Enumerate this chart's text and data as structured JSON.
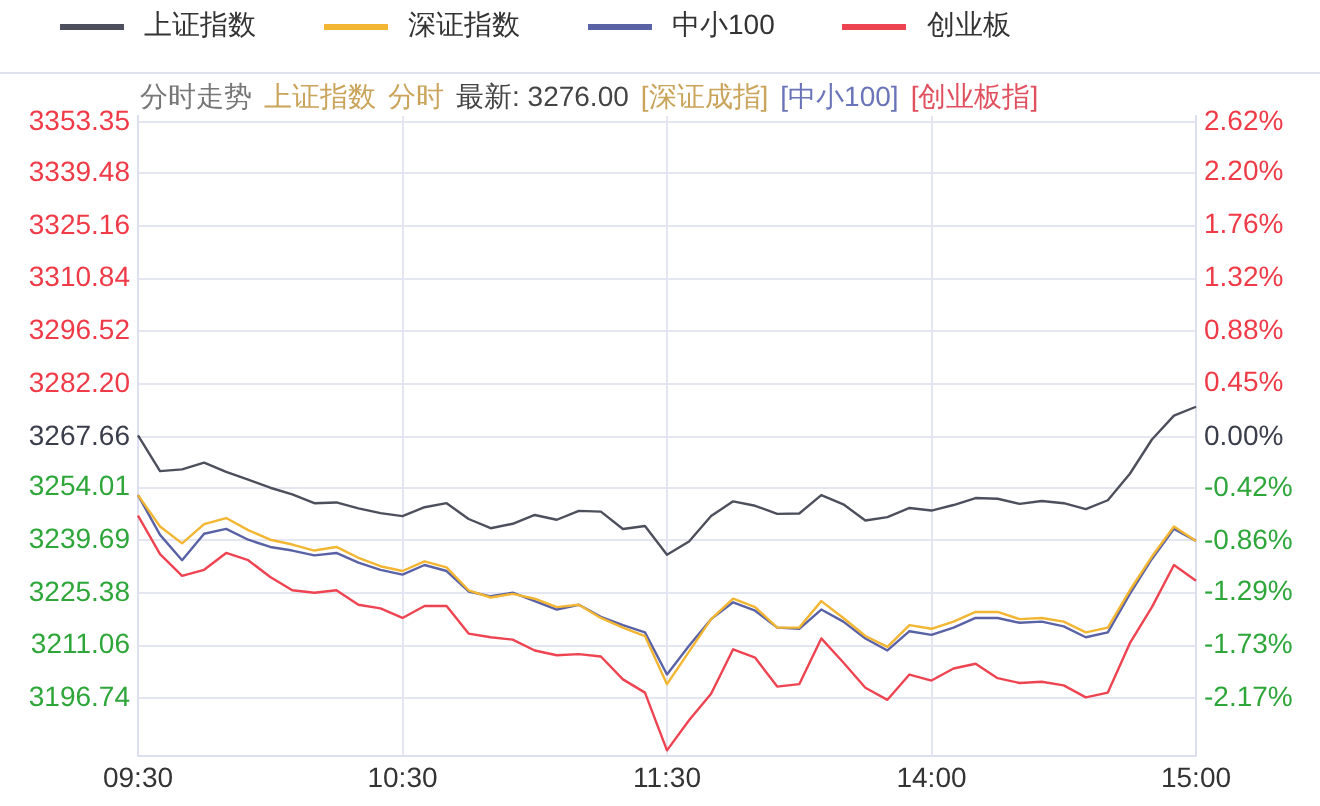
{
  "chart_data": {
    "type": "line",
    "annotations": [
      "分时走势",
      "上证指数",
      "分时",
      "最新: 3276.00",
      "[深证成指]",
      "[中小100]",
      "[创业板指]"
    ],
    "categories": [
      "09:30",
      null,
      null,
      null,
      null,
      null,
      null,
      null,
      null,
      null,
      null,
      null,
      "10:30",
      null,
      null,
      null,
      null,
      null,
      null,
      null,
      null,
      null,
      null,
      null,
      "11:30",
      null,
      null,
      null,
      null,
      null,
      null,
      null,
      null,
      null,
      null,
      null,
      "14:00",
      null,
      null,
      null,
      null,
      null,
      null,
      null,
      null,
      null,
      null,
      null,
      "15:00"
    ],
    "ylim": [
      3181,
      3355
    ],
    "yticks": [
      {
        "value": 3353.35,
        "label": "3353.35"
      },
      {
        "value": 3339.48,
        "label": "3339.48"
      },
      {
        "value": 3325.16,
        "label": "3325.16"
      },
      {
        "value": 3310.84,
        "label": "3310.84"
      },
      {
        "value": 3296.52,
        "label": "3296.52"
      },
      {
        "value": 3282.2,
        "label": "3282.20"
      },
      {
        "value": 3267.66,
        "label": "3267.66"
      },
      {
        "value": 3254.01,
        "label": "3254.01"
      },
      {
        "value": 3239.69,
        "label": "3239.69"
      },
      {
        "value": 3225.38,
        "label": "3225.38"
      },
      {
        "value": 3211.06,
        "label": "3211.06"
      },
      {
        "value": 3196.74,
        "label": "3196.74"
      }
    ],
    "y2lim": [
      -2.65,
      2.67
    ],
    "y2ticks": [
      {
        "value": 2.62,
        "label": "2.62%"
      },
      {
        "value": 2.2,
        "label": "2.20%"
      },
      {
        "value": 1.76,
        "label": "1.76%"
      },
      {
        "value": 1.32,
        "label": "1.32%"
      },
      {
        "value": 0.88,
        "label": "0.88%"
      },
      {
        "value": 0.45,
        "label": "0.45%"
      },
      {
        "value": 0,
        "label": "0.00%"
      },
      {
        "value": -0.42,
        "label": "-0.42%"
      },
      {
        "value": -0.86,
        "label": "-0.86%"
      },
      {
        "value": -1.29,
        "label": "-1.29%"
      },
      {
        "value": -1.73,
        "label": "-1.73%"
      },
      {
        "value": -2.17,
        "label": "-2.17%"
      }
    ],
    "grid": true,
    "legend": "top",
    "marker": "none",
    "line_style": "solid",
    "series": [
      {
        "name": "上证指数",
        "color": "#4d4f5c",
        "values": [
          3268.2,
          3258.5,
          3259.0,
          3260.8,
          3258.3,
          3256.2,
          3254.0,
          3252.2,
          3249.8,
          3250.0,
          3248.4,
          3247.1,
          3246.3,
          3248.7,
          3249.8,
          3245.5,
          3243.0,
          3244.2,
          3246.6,
          3245.3,
          3247.7,
          3247.5,
          3242.8,
          3243.6,
          3235.8,
          3239.4,
          3246.3,
          3250.3,
          3249.1,
          3246.9,
          3247.0,
          3252.0,
          3249.5,
          3245.1,
          3246.0,
          3248.5,
          3247.8,
          3249.3,
          3251.2,
          3251.0,
          3249.6,
          3250.4,
          3249.8,
          3248.2,
          3250.6,
          3257.8,
          3267.1,
          3273.6,
          3276.0
        ]
      },
      {
        "name": "深证指数",
        "color": "#f2b632",
        "axis": "y2",
        "values": [
          -0.48,
          -0.74,
          -0.88,
          -0.72,
          -0.67,
          -0.77,
          -0.85,
          -0.89,
          -0.94,
          -0.91,
          -1.0,
          -1.07,
          -1.11,
          -1.03,
          -1.08,
          -1.27,
          -1.33,
          -1.3,
          -1.34,
          -1.41,
          -1.39,
          -1.5,
          -1.58,
          -1.65,
          -2.05,
          -1.78,
          -1.51,
          -1.34,
          -1.41,
          -1.58,
          -1.58,
          -1.36,
          -1.5,
          -1.65,
          -1.74,
          -1.56,
          -1.59,
          -1.53,
          -1.45,
          -1.45,
          -1.51,
          -1.5,
          -1.53,
          -1.62,
          -1.58,
          -1.27,
          -0.99,
          -0.74,
          -0.86
        ]
      },
      {
        "name": "中小100",
        "color": "#5a62a6",
        "axis": "y2",
        "values": [
          -0.48,
          -0.81,
          -1.02,
          -0.8,
          -0.76,
          -0.85,
          -0.91,
          -0.94,
          -0.98,
          -0.96,
          -1.04,
          -1.1,
          -1.14,
          -1.06,
          -1.11,
          -1.28,
          -1.32,
          -1.29,
          -1.36,
          -1.43,
          -1.39,
          -1.49,
          -1.56,
          -1.62,
          -1.97,
          -1.73,
          -1.51,
          -1.37,
          -1.44,
          -1.58,
          -1.59,
          -1.43,
          -1.53,
          -1.67,
          -1.77,
          -1.61,
          -1.64,
          -1.58,
          -1.5,
          -1.5,
          -1.54,
          -1.53,
          -1.57,
          -1.66,
          -1.62,
          -1.3,
          -1.01,
          -0.76,
          -0.86
        ]
      },
      {
        "name": "创业板",
        "color": "#ee4452",
        "axis": "y2",
        "values": [
          -0.65,
          -0.97,
          -1.15,
          -1.1,
          -0.96,
          -1.02,
          -1.16,
          -1.27,
          -1.29,
          -1.27,
          -1.39,
          -1.42,
          -1.5,
          -1.4,
          -1.4,
          -1.63,
          -1.66,
          -1.68,
          -1.77,
          -1.81,
          -1.8,
          -1.82,
          -2.01,
          -2.12,
          -2.6,
          -2.35,
          -2.13,
          -1.76,
          -1.83,
          -2.07,
          -2.05,
          -1.67,
          -1.87,
          -2.08,
          -2.18,
          -1.97,
          -2.02,
          -1.92,
          -1.88,
          -2.0,
          -2.04,
          -2.03,
          -2.06,
          -2.16,
          -2.12,
          -1.71,
          -1.41,
          -1.06,
          -1.19
        ]
      }
    ]
  }
}
